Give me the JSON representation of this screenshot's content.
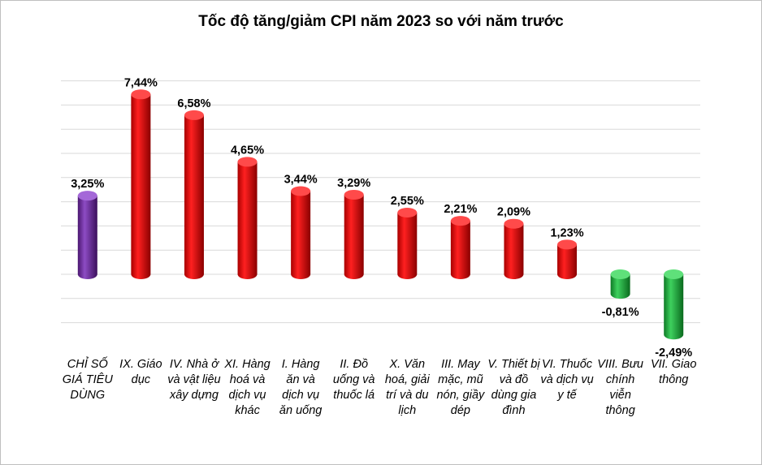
{
  "chart_data": {
    "type": "bar",
    "title": "Tốc độ tăng/giảm CPI năm 2023 so với năm trước",
    "xlabel": "",
    "ylabel": "",
    "ylim": [
      -2.8,
      8.5
    ],
    "grid": true,
    "legend": "none",
    "categories": [
      "CHỈ SỐ GIÁ TIÊU DÙNG",
      "IX. Giáo dục",
      "IV. Nhà ở và vật liệu xây dựng",
      "XI. Hàng hoá và dịch vụ khác",
      "I. Hàng ăn và dịch vụ ăn uống",
      "II. Đồ uống và thuốc lá",
      "X. Văn hoá, giải trí và du lịch",
      "III. May mặc, mũ nón, giầy dép",
      "V. Thiết bị và đồ dùng gia đình",
      "VI. Thuốc và dịch vụ y tế",
      "VIII. Bưu chính viễn thông",
      "VII. Giao thông"
    ],
    "values": [
      3.25,
      7.44,
      6.58,
      4.65,
      3.44,
      3.29,
      2.55,
      2.21,
      2.09,
      1.23,
      -0.81,
      -2.49
    ],
    "data_labels": [
      "3,25%",
      "7,44%",
      "6,58%",
      "4,65%",
      "3,44%",
      "3,29%",
      "2,55%",
      "2,21%",
      "2,09%",
      "1,23%",
      "-0,81%",
      "-2,49%"
    ],
    "colors": {
      "overall": "#7030a0",
      "increase": "#e00000",
      "decrease": "#1ea53a",
      "grid": "#d9d9d9"
    }
  }
}
